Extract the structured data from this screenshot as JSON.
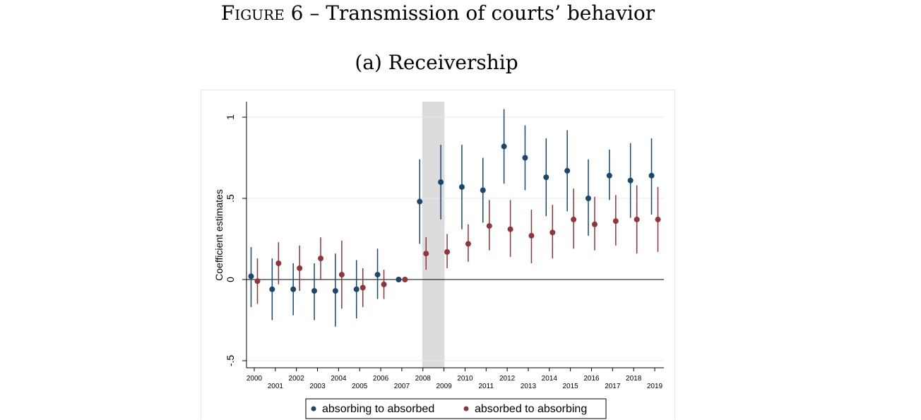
{
  "figure": {
    "label": "Figure",
    "number_title": "6 – Transmission of courts’ behavior",
    "subtitle": "(a) Receivership"
  },
  "chart_data": {
    "type": "scatter",
    "title": "",
    "ylabel": "Coefficient estimates",
    "xlabel": "",
    "x": [
      2000,
      2001,
      2002,
      2003,
      2004,
      2005,
      2006,
      2007,
      2008,
      2009,
      2010,
      2011,
      2012,
      2013,
      2014,
      2015,
      2016,
      2017,
      2018,
      2019
    ],
    "ylim": [
      -0.5,
      1
    ],
    "yticks": [
      -0.5,
      0,
      0.5,
      1
    ],
    "ytick_labels": [
      "-.5",
      "0",
      ".5",
      "1"
    ],
    "shaded_region": [
      2008,
      2009
    ],
    "reference_line_y": 0,
    "grid": true,
    "legend_position": "bottom",
    "series": [
      {
        "name": "absorbing to absorbed",
        "color": "#1a476f",
        "values": [
          0.02,
          -0.06,
          -0.06,
          -0.07,
          -0.07,
          -0.06,
          0.03,
          0.0,
          0.48,
          0.6,
          0.57,
          0.55,
          0.82,
          0.75,
          0.63,
          0.67,
          0.5,
          0.64,
          0.61,
          0.64
        ],
        "ci_low": [
          -0.17,
          -0.25,
          -0.22,
          -0.25,
          -0.29,
          -0.24,
          -0.12,
          0.0,
          0.22,
          0.37,
          0.31,
          0.35,
          0.59,
          0.55,
          0.39,
          0.42,
          0.27,
          0.49,
          0.38,
          0.4
        ],
        "ci_high": [
          0.2,
          0.13,
          0.1,
          0.1,
          0.16,
          0.12,
          0.19,
          0.0,
          0.74,
          0.83,
          0.83,
          0.75,
          1.05,
          0.95,
          0.87,
          0.92,
          0.74,
          0.8,
          0.84,
          0.87
        ]
      },
      {
        "name": "absorbed to absorbing",
        "color": "#90353b",
        "values": [
          -0.01,
          0.1,
          0.07,
          0.13,
          0.03,
          -0.05,
          -0.03,
          0.0,
          0.16,
          0.17,
          0.22,
          0.33,
          0.31,
          0.27,
          0.29,
          0.37,
          0.34,
          0.36,
          0.37,
          0.37
        ],
        "ci_low": [
          -0.15,
          -0.03,
          -0.07,
          0.0,
          -0.18,
          -0.17,
          -0.12,
          0.0,
          0.06,
          0.07,
          0.11,
          0.18,
          0.14,
          0.1,
          0.13,
          0.19,
          0.18,
          0.21,
          0.16,
          0.17
        ],
        "ci_high": [
          0.13,
          0.23,
          0.21,
          0.26,
          0.24,
          0.07,
          0.06,
          0.0,
          0.26,
          0.28,
          0.34,
          0.49,
          0.49,
          0.43,
          0.46,
          0.56,
          0.51,
          0.52,
          0.58,
          0.57
        ]
      }
    ]
  }
}
